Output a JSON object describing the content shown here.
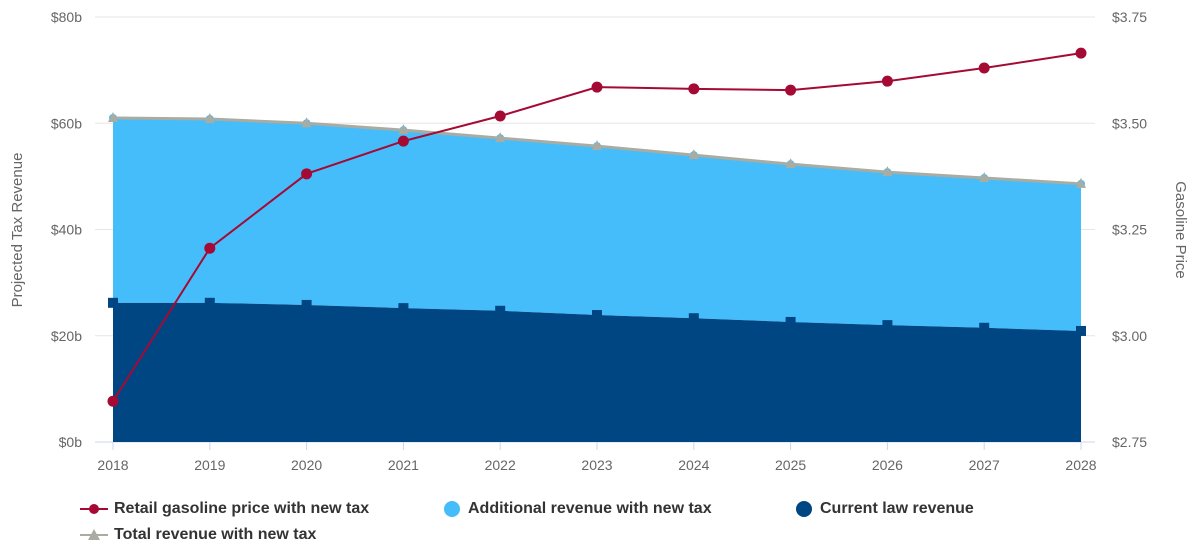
{
  "chart_data": {
    "type": "area",
    "x": [
      2018,
      2019,
      2020,
      2021,
      2022,
      2023,
      2024,
      2025,
      2026,
      2027,
      2028
    ],
    "left_axis": {
      "title": "Projected Tax Revenue",
      "ylim": [
        0,
        80
      ],
      "ticks": [
        "$0b",
        "$20b",
        "$40b",
        "$60b",
        "$80b"
      ],
      "tick_values": [
        0,
        20,
        40,
        60,
        80
      ]
    },
    "right_axis": {
      "title": "Gasoline Price",
      "ylim": [
        2.75,
        3.75
      ],
      "ticks": [
        "$2.75",
        "$3.00",
        "$3.25",
        "$3.50",
        "$3.75"
      ],
      "tick_values": [
        2.75,
        3.0,
        3.25,
        3.5,
        3.75
      ]
    },
    "x_ticks": [
      "2018",
      "2019",
      "2020",
      "2021",
      "2022",
      "2023",
      "2024",
      "2025",
      "2026",
      "2027",
      "2028"
    ],
    "series": [
      {
        "name": "Retail gasoline price with new tax",
        "type": "line",
        "axis": "right",
        "color": "#a50a35",
        "values": [
          2.846,
          3.206,
          3.381,
          3.458,
          3.517,
          3.585,
          3.581,
          3.578,
          3.599,
          3.63,
          3.665
        ]
      },
      {
        "name": "Additional revenue with new tax",
        "type": "stacked-area",
        "axis": "left",
        "color": "#45bdfb",
        "values": [
          34.8,
          34.6,
          34.2,
          33.5,
          32.5,
          31.8,
          30.7,
          29.7,
          28.8,
          28.2,
          27.7
        ]
      },
      {
        "name": "Current law revenue",
        "type": "stacked-area",
        "axis": "left",
        "color": "#004683",
        "values": [
          26.2,
          26.2,
          25.8,
          25.2,
          24.7,
          23.9,
          23.3,
          22.6,
          22.0,
          21.5,
          20.9
        ]
      },
      {
        "name": "Total revenue with new tax",
        "type": "line",
        "axis": "left",
        "color": "#a8aca2",
        "values": [
          61.0,
          60.8,
          60.0,
          58.7,
          57.2,
          55.7,
          54.0,
          52.3,
          50.8,
          49.7,
          48.6
        ]
      }
    ],
    "legend_position": "bottom"
  }
}
